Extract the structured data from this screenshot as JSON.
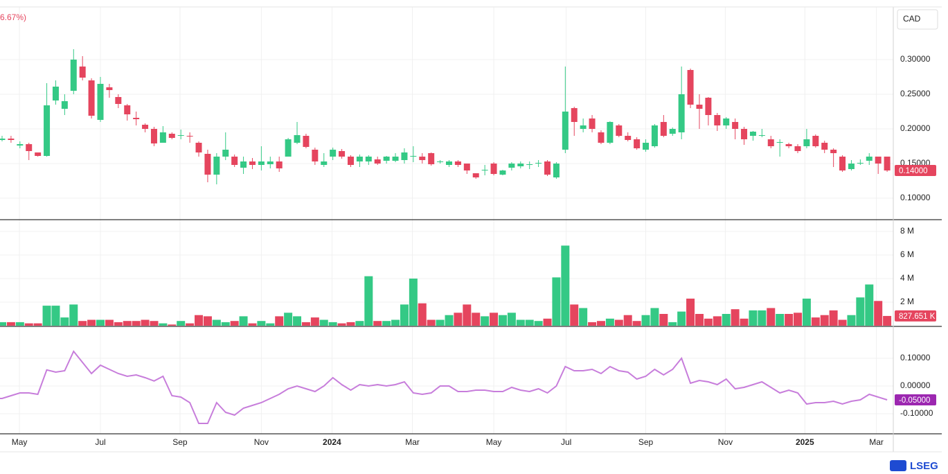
{
  "header_text": "6.67%)",
  "currency": "CAD",
  "logo": "LSEG",
  "chart_data": [
    {
      "type": "candlestick",
      "up_color": "#34c985",
      "down_color": "#e5455e",
      "ylim": [
        0.069,
        0.376
      ],
      "yticks": [
        {
          "value": 0.3,
          "label": "0.30000"
        },
        {
          "value": 0.25,
          "label": "0.25000"
        },
        {
          "value": 0.2,
          "label": "0.20000"
        },
        {
          "value": 0.15,
          "label": "0.15000"
        },
        {
          "value": 0.1,
          "label": "0.10000"
        }
      ],
      "open": [
        0.184,
        0.186,
        0.176,
        0.178,
        0.166,
        0.161,
        0.241,
        0.229,
        0.255,
        0.29,
        0.27,
        0.213,
        0.26,
        0.246,
        0.234,
        0.216,
        0.206,
        0.2,
        0.18,
        0.193,
        0.19,
        0.19,
        0.18,
        0.164,
        0.134,
        0.16,
        0.16,
        0.144,
        0.153,
        0.148,
        0.149,
        0.153,
        0.16,
        0.18,
        0.19,
        0.17,
        0.148,
        0.16,
        0.168,
        0.16,
        0.153,
        0.153,
        0.156,
        0.154,
        0.154,
        0.155,
        0.16,
        0.16,
        0.165,
        0.152,
        0.148,
        0.153,
        0.15,
        0.136,
        0.14,
        0.15,
        0.134,
        0.144,
        0.146,
        0.148,
        0.15,
        0.153,
        0.13,
        0.17,
        0.23,
        0.2,
        0.215,
        0.195,
        0.18,
        0.205,
        0.19,
        0.185,
        0.17,
        0.175,
        0.21,
        0.193,
        0.195,
        0.285,
        0.235,
        0.245,
        0.22,
        0.205,
        0.21,
        0.2,
        0.19,
        0.19,
        0.185,
        0.18,
        0.178,
        0.175,
        0.175,
        0.19,
        0.18,
        0.17,
        0.16,
        0.142,
        0.15,
        0.154,
        0.16,
        0.16
      ],
      "high": [
        0.19,
        0.19,
        0.182,
        0.18,
        0.166,
        0.266,
        0.27,
        0.25,
        0.315,
        0.305,
        0.273,
        0.275,
        0.265,
        0.25,
        0.236,
        0.225,
        0.208,
        0.203,
        0.204,
        0.195,
        0.199,
        0.195,
        0.182,
        0.17,
        0.165,
        0.195,
        0.163,
        0.16,
        0.158,
        0.175,
        0.16,
        0.16,
        0.187,
        0.21,
        0.193,
        0.173,
        0.165,
        0.173,
        0.171,
        0.162,
        0.163,
        0.162,
        0.16,
        0.161,
        0.165,
        0.172,
        0.175,
        0.165,
        0.166,
        0.155,
        0.155,
        0.155,
        0.15,
        0.136,
        0.148,
        0.152,
        0.141,
        0.152,
        0.153,
        0.153,
        0.155,
        0.155,
        0.152,
        0.29,
        0.232,
        0.215,
        0.22,
        0.198,
        0.211,
        0.207,
        0.195,
        0.188,
        0.185,
        0.207,
        0.22,
        0.202,
        0.29,
        0.287,
        0.25,
        0.246,
        0.223,
        0.217,
        0.215,
        0.203,
        0.197,
        0.2,
        0.19,
        0.185,
        0.18,
        0.178,
        0.2,
        0.192,
        0.183,
        0.172,
        0.162,
        0.155,
        0.156,
        0.165,
        0.16,
        0.16
      ],
      "low": [
        0.182,
        0.18,
        0.172,
        0.155,
        0.16,
        0.16,
        0.235,
        0.22,
        0.25,
        0.27,
        0.215,
        0.21,
        0.245,
        0.23,
        0.212,
        0.205,
        0.195,
        0.175,
        0.18,
        0.185,
        0.185,
        0.18,
        0.16,
        0.123,
        0.12,
        0.155,
        0.145,
        0.135,
        0.142,
        0.14,
        0.143,
        0.138,
        0.16,
        0.178,
        0.172,
        0.148,
        0.145,
        0.155,
        0.157,
        0.145,
        0.145,
        0.148,
        0.148,
        0.15,
        0.152,
        0.15,
        0.152,
        0.15,
        0.147,
        0.15,
        0.145,
        0.145,
        0.135,
        0.128,
        0.133,
        0.133,
        0.133,
        0.14,
        0.143,
        0.142,
        0.145,
        0.132,
        0.128,
        0.165,
        0.19,
        0.195,
        0.195,
        0.178,
        0.178,
        0.188,
        0.182,
        0.17,
        0.167,
        0.173,
        0.188,
        0.19,
        0.185,
        0.23,
        0.2,
        0.205,
        0.197,
        0.2,
        0.185,
        0.177,
        0.183,
        0.188,
        0.172,
        0.16,
        0.172,
        0.165,
        0.172,
        0.173,
        0.165,
        0.145,
        0.138,
        0.14,
        0.148,
        0.148,
        0.135,
        0.138
      ],
      "close": [
        0.186,
        0.184,
        0.178,
        0.168,
        0.161,
        0.234,
        0.261,
        0.24,
        0.3,
        0.274,
        0.219,
        0.265,
        0.256,
        0.236,
        0.221,
        0.214,
        0.2,
        0.179,
        0.195,
        0.187,
        0.191,
        0.189,
        0.166,
        0.134,
        0.16,
        0.17,
        0.148,
        0.153,
        0.148,
        0.153,
        0.153,
        0.143,
        0.185,
        0.191,
        0.174,
        0.153,
        0.153,
        0.17,
        0.16,
        0.148,
        0.16,
        0.16,
        0.15,
        0.16,
        0.16,
        0.166,
        0.161,
        0.155,
        0.149,
        0.153,
        0.153,
        0.148,
        0.14,
        0.13,
        0.141,
        0.135,
        0.14,
        0.15,
        0.15,
        0.149,
        0.151,
        0.134,
        0.15,
        0.225,
        0.21,
        0.205,
        0.2,
        0.18,
        0.21,
        0.19,
        0.184,
        0.172,
        0.18,
        0.205,
        0.19,
        0.2,
        0.25,
        0.235,
        0.229,
        0.22,
        0.205,
        0.215,
        0.2,
        0.185,
        0.196,
        0.191,
        0.175,
        0.181,
        0.175,
        0.168,
        0.185,
        0.175,
        0.17,
        0.165,
        0.14,
        0.15,
        0.151,
        0.16,
        0.15,
        0.14
      ],
      "price_badge": {
        "value": 0.14,
        "label": "0.14000"
      }
    },
    {
      "type": "bar",
      "ylim": [
        0,
        9000000
      ],
      "yticks": [
        {
          "value": 8000000,
          "label": "8 M"
        },
        {
          "value": 6000000,
          "label": "6 M"
        },
        {
          "value": 4000000,
          "label": "4 M"
        },
        {
          "value": 2000000,
          "label": "2 M"
        }
      ],
      "values": [
        300000,
        300000,
        300000,
        200000,
        200000,
        1700000,
        1700000,
        700000,
        1800000,
        400000,
        500000,
        500000,
        500000,
        300000,
        400000,
        400000,
        500000,
        400000,
        200000,
        100000,
        400000,
        200000,
        900000,
        800000,
        500000,
        300000,
        400000,
        800000,
        200000,
        400000,
        200000,
        800000,
        1100000,
        800000,
        300000,
        700000,
        500000,
        300000,
        200000,
        300000,
        400000,
        4200000,
        400000,
        400000,
        500000,
        1800000,
        4000000,
        1900000,
        500000,
        500000,
        900000,
        1100000,
        1800000,
        1100000,
        800000,
        1100000,
        900000,
        1100000,
        500000,
        500000,
        400000,
        600000,
        4100000,
        6800000,
        1800000,
        1500000,
        300000,
        400000,
        600000,
        500000,
        900000,
        400000,
        900000,
        1500000,
        1000000,
        300000,
        1200000,
        2300000,
        1000000,
        600000,
        800000,
        1000000,
        1400000,
        600000,
        1300000,
        1300000,
        1500000,
        1000000,
        1000000,
        1100000,
        2300000,
        700000,
        900000,
        1300000,
        500000,
        900000,
        2400000,
        3500000,
        2100000,
        827651
      ],
      "last_badge": {
        "value": 827651,
        "label": "827.651 K"
      }
    },
    {
      "type": "line",
      "color": "#c77ddb",
      "ylim": [
        -0.1725,
        0.215
      ],
      "yticks": [
        {
          "value": 0.1,
          "label": "0.10000"
        },
        {
          "value": 0,
          "label": "0.00000"
        },
        {
          "value": -0.1,
          "label": "-0.10000"
        }
      ],
      "values": [
        -0.045,
        -0.035,
        -0.025,
        -0.025,
        -0.03,
        0.058,
        0.05,
        0.055,
        0.125,
        0.085,
        0.045,
        0.075,
        0.06,
        0.045,
        0.035,
        0.04,
        0.03,
        0.018,
        0.035,
        -0.035,
        -0.04,
        -0.06,
        -0.135,
        -0.135,
        -0.06,
        -0.095,
        -0.105,
        -0.08,
        -0.07,
        -0.06,
        -0.045,
        -0.03,
        -0.01,
        0,
        -0.01,
        -0.02,
        0,
        0.03,
        0.005,
        -0.015,
        0.005,
        0,
        0.005,
        0,
        0.005,
        0.015,
        -0.025,
        -0.03,
        -0.025,
        0,
        0,
        -0.02,
        -0.02,
        -0.015,
        -0.015,
        -0.02,
        -0.02,
        -0.005,
        -0.015,
        -0.02,
        -0.01,
        -0.025,
        0,
        0.07,
        0.055,
        0.055,
        0.06,
        0.045,
        0.07,
        0.055,
        0.05,
        0.025,
        0.035,
        0.06,
        0.04,
        0.06,
        0.1,
        0.01,
        0.02,
        0.015,
        0.005,
        0.025,
        -0.01,
        -0.005,
        0.005,
        0.015,
        -0.005,
        -0.025,
        -0.015,
        -0.025,
        -0.065,
        -0.06,
        -0.06,
        -0.055,
        -0.065,
        -0.055,
        -0.05,
        -0.03,
        -0.04,
        -0.05
      ],
      "last_badge": {
        "value": -0.05,
        "label": "-0.05000"
      },
      "xticks": [
        {
          "value": 1.94,
          "label": "May"
        },
        {
          "value": 11,
          "label": "Jul"
        },
        {
          "value": 19.9,
          "label": "Sep"
        },
        {
          "value": 29,
          "label": "Nov"
        },
        {
          "value": 36.9,
          "label": "2024"
        },
        {
          "value": 45.9,
          "label": "Mar"
        },
        {
          "value": 55,
          "label": "May"
        },
        {
          "value": 63.1,
          "label": "Jul"
        },
        {
          "value": 72,
          "label": "Sep"
        },
        {
          "value": 80.9,
          "label": "Nov"
        },
        {
          "value": 89.8,
          "label": "2025"
        },
        {
          "value": 97.8,
          "label": "Mar"
        }
      ]
    }
  ]
}
